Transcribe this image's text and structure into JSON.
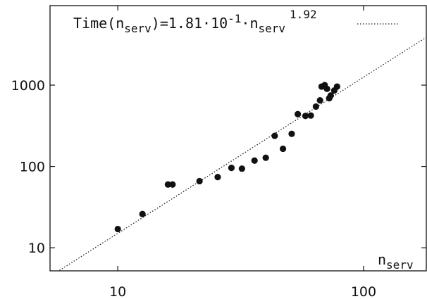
{
  "chart_data": {
    "type": "scatter",
    "title": "",
    "xlabel": {
      "base": "n",
      "sub": "serv"
    },
    "ylabel": "",
    "xscale": "log",
    "yscale": "log",
    "xlim": [
      5.3,
      180
    ],
    "ylim": [
      5.2,
      9500
    ],
    "grid": false,
    "legend_position": "top",
    "x_ticks": [
      10,
      100
    ],
    "x_tick_labels": [
      "10",
      "100"
    ],
    "y_ticks": [
      10,
      100,
      1000
    ],
    "y_tick_labels": [
      "10",
      "100",
      "1000"
    ],
    "fit": {
      "coefficient": 0.181,
      "exponent": 1.92,
      "style": "dotted",
      "label": {
        "prefix": "Time(n",
        "sub1": "serv",
        "middle": ")=1.81·10",
        "sup1": "-1",
        "dot": "·n",
        "sub2": "serv",
        "sup2": "1.92"
      }
    },
    "series": [
      {
        "marker": "filled-circle",
        "color": "#111111",
        "points": [
          [
            10,
            17
          ],
          [
            12.6,
            26
          ],
          [
            16,
            60
          ],
          [
            16.7,
            60
          ],
          [
            21.5,
            66
          ],
          [
            25.5,
            74
          ],
          [
            29,
            96
          ],
          [
            32,
            94
          ],
          [
            36,
            118
          ],
          [
            40,
            128
          ],
          [
            43.5,
            238
          ],
          [
            47,
            165
          ],
          [
            51,
            252
          ],
          [
            54,
            440
          ],
          [
            58,
            418
          ],
          [
            61,
            423
          ],
          [
            64,
            545
          ],
          [
            66.5,
            650
          ],
          [
            67.5,
            960
          ],
          [
            69.5,
            1000
          ],
          [
            71,
            900
          ],
          [
            72.5,
            690
          ],
          [
            73.5,
            745
          ],
          [
            76,
            860
          ],
          [
            78,
            960
          ]
        ]
      }
    ]
  }
}
